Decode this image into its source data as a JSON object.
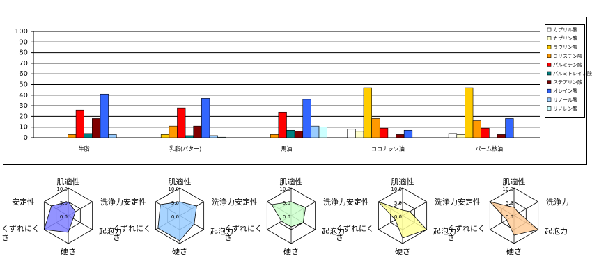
{
  "chart_data": [
    {
      "type": "bar",
      "categories": [
        "牛脂",
        "乳脂(バター)",
        "馬油",
        "ココナッツ油",
        "パーム核油"
      ],
      "series": [
        {
          "name": "カプリル酸",
          "color": "#ffffff",
          "values": [
            0,
            0,
            0,
            8,
            4
          ]
        },
        {
          "name": "カプリン酸",
          "color": "#ffffcc",
          "values": [
            0,
            0,
            0,
            6,
            3
          ]
        },
        {
          "name": "ラウリン酸",
          "color": "#ffcc00",
          "values": [
            0,
            3,
            0,
            47,
            47
          ]
        },
        {
          "name": "ミリスチン酸",
          "color": "#ff9900",
          "values": [
            3,
            11,
            3,
            18,
            16
          ]
        },
        {
          "name": "パルミチン酸",
          "color": "#ff0000",
          "values": [
            26,
            28,
            24,
            9,
            9
          ]
        },
        {
          "name": "パルミトレイン酸",
          "color": "#008080",
          "values": [
            4,
            2,
            7,
            0,
            0
          ]
        },
        {
          "name": "ステアリン酸",
          "color": "#800000",
          "values": [
            18,
            11,
            6,
            3,
            3
          ]
        },
        {
          "name": "オレイン酸",
          "color": "#3366ff",
          "values": [
            41,
            37,
            36,
            7,
            18
          ]
        },
        {
          "name": "リノール酸",
          "color": "#99ccff",
          "values": [
            3,
            2,
            11,
            0,
            0
          ]
        },
        {
          "name": "リノレン酸",
          "color": "#ccffff",
          "values": [
            0,
            0.5,
            10,
            0,
            0
          ]
        }
      ],
      "ylim": [
        0,
        100
      ],
      "yticks": [
        0,
        10,
        20,
        30,
        40,
        50,
        60,
        70,
        80,
        90,
        100
      ],
      "grid": true,
      "legend": "right"
    },
    {
      "type": "radar",
      "categories": [
        "肌適性",
        "洗浄力",
        "起泡力",
        "硬さ",
        "くずれにくさ",
        "安定性"
      ],
      "values": [
        5,
        3,
        2,
        6,
        10,
        7
      ],
      "color": "#8080ff",
      "rlim": [
        0,
        10
      ],
      "rticks": [
        {
          "value": 0,
          "label": "0.0"
        },
        {
          "value": 5,
          "label": "5.0"
        },
        {
          "value": 10,
          "label": "10.0"
        }
      ]
    },
    {
      "type": "radar",
      "categories": [
        "肌適性",
        "洗浄力",
        "起泡力",
        "硬さ",
        "くずれにくさ",
        "安定性"
      ],
      "values": [
        5,
        7,
        6,
        9,
        9,
        8
      ],
      "color": "#99ccff",
      "rlim": [
        0,
        10
      ],
      "rticks": [
        {
          "value": 0,
          "label": "0.0"
        },
        {
          "value": 5,
          "label": "5.0"
        },
        {
          "value": 10,
          "label": "10.0"
        }
      ]
    },
    {
      "type": "radar",
      "categories": [
        "肌適性",
        "洗浄力",
        "起泡力",
        "硬さ",
        "くずれにくさ",
        "安定性"
      ],
      "values": [
        5,
        6,
        5,
        4,
        4,
        8
      ],
      "color": "#ccffcc",
      "rlim": [
        0,
        10
      ],
      "rticks": [
        {
          "value": 0,
          "label": "0.0"
        },
        {
          "value": 5,
          "label": "5.0"
        },
        {
          "value": 10,
          "label": "10.0"
        }
      ]
    },
    {
      "type": "radar",
      "categories": [
        "肌適性",
        "洗浄力",
        "起泡力",
        "硬さ",
        "くずれにくさ",
        "安定性"
      ],
      "values": [
        2,
        3,
        10,
        8,
        3,
        10
      ],
      "color": "#ffff99",
      "rlim": [
        0,
        10
      ],
      "rticks": [
        {
          "value": 0,
          "label": "0.0"
        },
        {
          "value": 5,
          "label": "5.0"
        },
        {
          "value": 10,
          "label": "10.0"
        }
      ]
    },
    {
      "type": "radar",
      "categories": [
        "肌適性",
        "洗浄力",
        "起泡力",
        "硬さ",
        "くずれにくさ",
        "安定性"
      ],
      "values": [
        3,
        2,
        10,
        7,
        3,
        10
      ],
      "color": "#ffcc99",
      "rlim": [
        0,
        10
      ],
      "rticks": [
        {
          "value": 0,
          "label": "0.0"
        },
        {
          "value": 5,
          "label": "5.0"
        },
        {
          "value": 10,
          "label": "10.0"
        }
      ]
    }
  ]
}
